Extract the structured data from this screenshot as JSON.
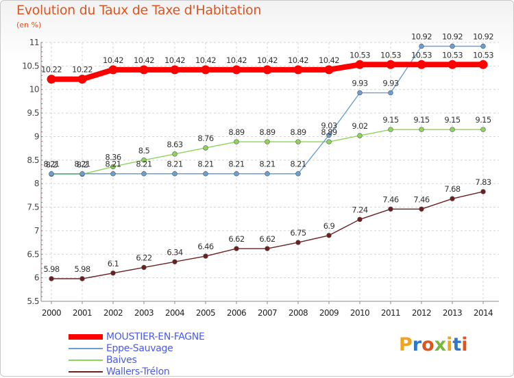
{
  "chart_data": {
    "type": "line",
    "title": "Evolution du Taux de Taxe d'Habitation",
    "subtitle": "(en %)",
    "x": [
      "2000",
      "2001",
      "2002",
      "2003",
      "2004",
      "2005",
      "2006",
      "2007",
      "2008",
      "2009",
      "2010",
      "2011",
      "2012",
      "2013",
      "2014"
    ],
    "ylim": [
      5.5,
      11
    ],
    "yticks": [
      "5.5",
      "6",
      "6.5",
      "7",
      "7.5",
      "8",
      "8.5",
      "9",
      "9.5",
      "10",
      "10.5",
      "11"
    ],
    "grid": true,
    "legend_position": "bottom-left",
    "series": [
      {
        "name": "MOUSTIER-EN-FAGNE",
        "color": "#ff0000",
        "values": [
          10.22,
          10.22,
          10.42,
          10.42,
          10.42,
          10.42,
          10.42,
          10.42,
          10.42,
          10.42,
          10.53,
          10.53,
          10.53,
          10.53,
          10.53
        ],
        "labels": [
          "10.22",
          "10.22",
          "10.42",
          "10.42",
          "10.42",
          "10.42",
          "10.42",
          "10.42",
          "10.42",
          "10.42",
          "10.53",
          "10.53",
          "10.53",
          "10.53",
          "10.53"
        ]
      },
      {
        "name": "Eppe-Sauvage",
        "color": "#6a9fd4",
        "values": [
          8.21,
          8.21,
          8.21,
          8.21,
          8.21,
          8.21,
          8.21,
          8.21,
          8.21,
          9.03,
          9.93,
          9.93,
          10.92,
          10.92,
          10.92
        ],
        "labels": [
          "8.21",
          "8.21",
          "8.21",
          "8.21",
          "8.21",
          "8.21",
          "8.21",
          "8.21",
          "8.21",
          "9.03",
          "9.93",
          "9.93",
          "10.92",
          "10.92",
          "10.92"
        ]
      },
      {
        "name": "Baives",
        "color": "#8ed45a",
        "values": [
          8.2,
          8.2,
          8.36,
          8.5,
          8.63,
          8.76,
          8.89,
          8.89,
          8.89,
          8.89,
          9.02,
          9.15,
          9.15,
          9.15,
          9.15
        ],
        "labels": [
          "8.2",
          "8.2",
          "8.36",
          "8.5",
          "8.63",
          "8.76",
          "8.89",
          "8.89",
          "8.89",
          "8.89",
          "9.02",
          "9.15",
          "9.15",
          "9.15",
          "9.15"
        ]
      },
      {
        "name": "Wallers-Trélon",
        "color": "#6b1f1f",
        "values": [
          5.98,
          5.98,
          6.1,
          6.22,
          6.34,
          6.46,
          6.62,
          6.62,
          6.75,
          6.9,
          7.24,
          7.46,
          7.46,
          7.68,
          7.83
        ],
        "labels": [
          "5.98",
          "5.98",
          "6.1",
          "6.22",
          "6.34",
          "6.46",
          "6.62",
          "6.62",
          "6.75",
          "6.9",
          "7.24",
          "7.46",
          "7.46",
          "7.68",
          "7.83"
        ]
      }
    ]
  },
  "logo": {
    "letters": [
      "P",
      "r",
      "o",
      "x",
      "i",
      "t",
      "i"
    ],
    "colors": [
      "#f2a31b",
      "#2f77c8",
      "#e0531f",
      "#78b83a",
      "#f2a31b",
      "#2f77c8",
      "#e0531f"
    ]
  }
}
